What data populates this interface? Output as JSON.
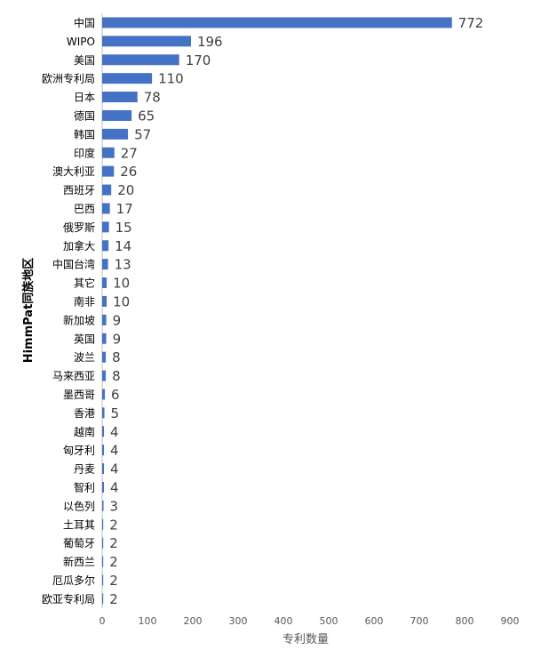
{
  "chart_data": {
    "type": "bar",
    "orientation": "horizontal",
    "xlabel": "专利数量",
    "ylabel": "HimmPat同族地区",
    "xlim": [
      0,
      900
    ],
    "xticks": [
      "0",
      "100",
      "200",
      "300",
      "400",
      "500",
      "600",
      "700",
      "800",
      "900"
    ],
    "bar_color": "#4472C4",
    "grid": false,
    "categories": [
      "中国",
      "WIPO",
      "美国",
      "欧洲专利局",
      "日本",
      "德国",
      "韩国",
      "印度",
      "澳大利亚",
      "西班牙",
      "巴西",
      "俄罗斯",
      "加拿大",
      "中国台湾",
      "其它",
      "南非",
      "新加坡",
      "英国",
      "波兰",
      "马来西亚",
      "墨西哥",
      "香港",
      "越南",
      "匈牙利",
      "丹麦",
      "智利",
      "以色列",
      "土耳其",
      "葡萄牙",
      "新西兰",
      "厄瓜多尔",
      "欧亚专利局"
    ],
    "values": [
      772,
      196,
      170,
      110,
      78,
      65,
      57,
      27,
      26,
      20,
      17,
      15,
      14,
      13,
      10,
      10,
      9,
      9,
      8,
      8,
      6,
      5,
      4,
      4,
      4,
      4,
      3,
      2,
      2,
      2,
      2,
      2
    ]
  }
}
